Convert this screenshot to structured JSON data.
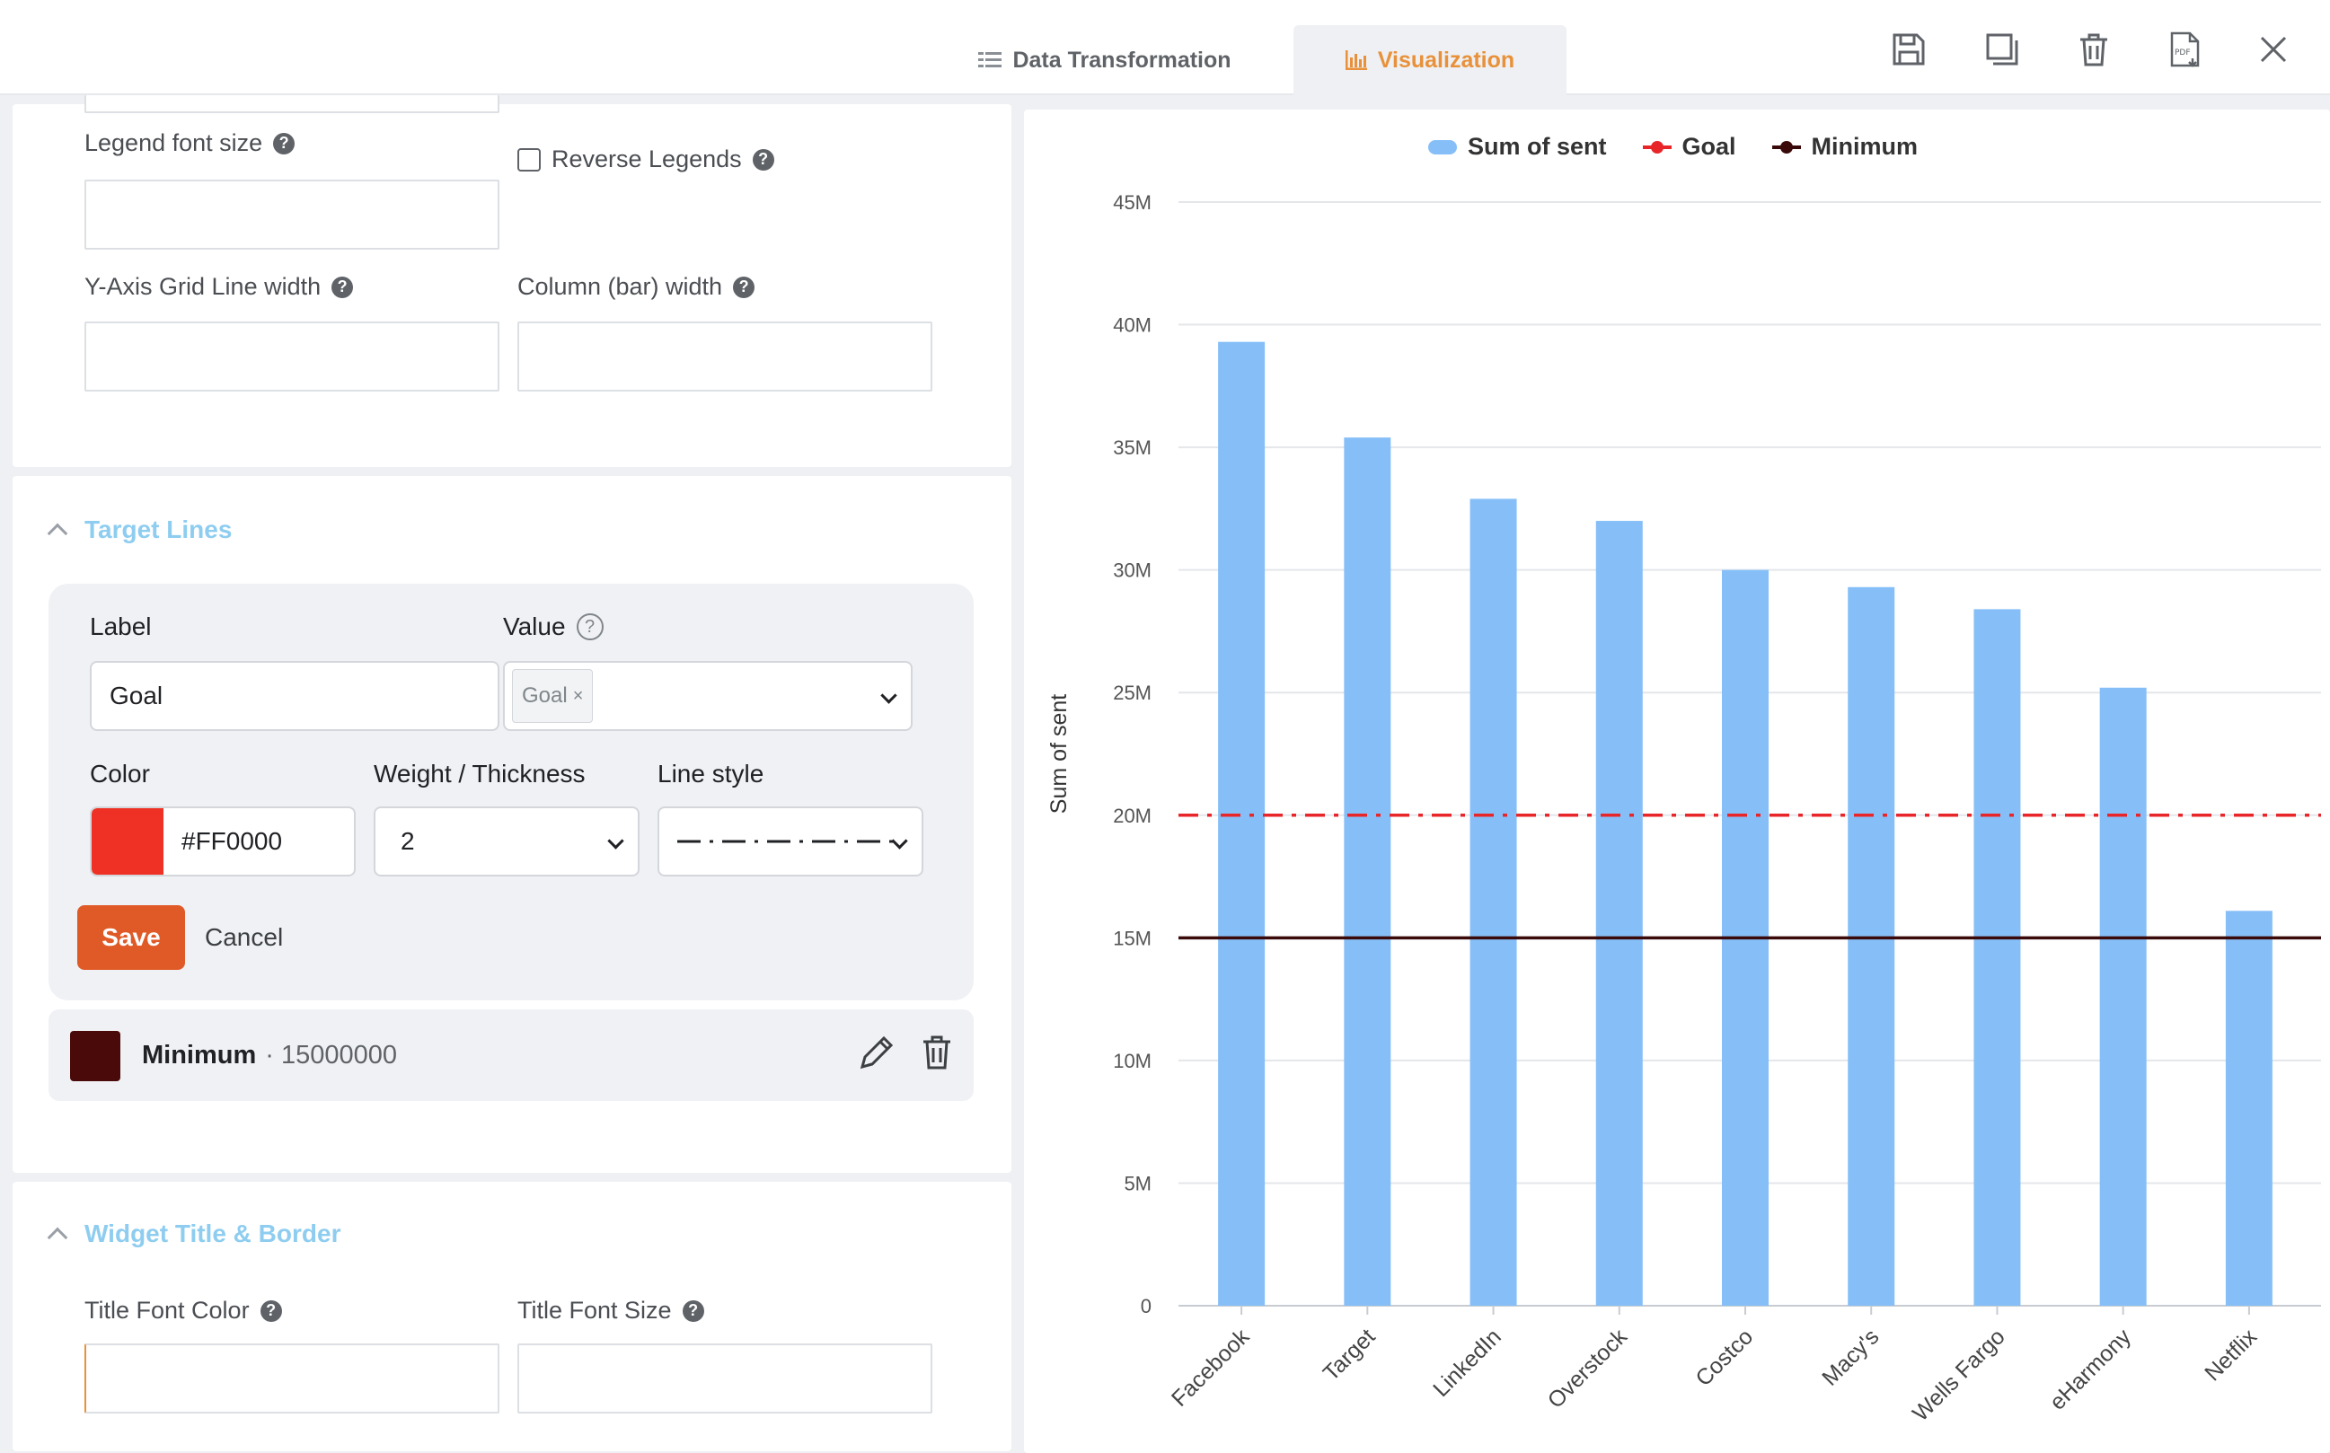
{
  "tabs": [
    {
      "label": "Data Transformation",
      "active": false
    },
    {
      "label": "Visualization",
      "active": true
    }
  ],
  "toolbar": {
    "icons": [
      "save-icon",
      "duplicate-icon",
      "trash-icon",
      "pdf-icon",
      "close-icon"
    ]
  },
  "settings": {
    "legend_font_size_label": "Legend font size",
    "reverse_legends_label": "Reverse Legends",
    "grid_width_label": "Y-Axis Grid Line width",
    "bar_width_label": "Column (bar) width"
  },
  "target_lines": {
    "section_title": "Target Lines",
    "label_label": "Label",
    "label_value": "Goal",
    "value_label": "Value",
    "value_chip": "Goal",
    "color_label": "Color",
    "color_value": "#FF0000",
    "weight_label": "Weight / Thickness",
    "weight_value": "2",
    "line_style_label": "Line style",
    "save_label": "Save",
    "cancel_label": "Cancel",
    "existing": [
      {
        "name": "Minimum",
        "value": "· 15000000",
        "color": "#4a0a0a"
      }
    ]
  },
  "widget_title": {
    "section_title": "Widget Title & Border",
    "font_color_label": "Title Font Color",
    "font_size_label": "Title Font Size"
  },
  "chart_data": {
    "type": "bar",
    "categories": [
      "Facebook",
      "Target",
      "LinkedIn",
      "Overstock",
      "Costco",
      "Macy's",
      "Wells Fargo",
      "eHarmony",
      "Netflix"
    ],
    "series": [
      {
        "name": "Sum of sent",
        "values": [
          39300000,
          35400000,
          32900000,
          32000000,
          30000000,
          29300000,
          28400000,
          25200000,
          16100000
        ],
        "color": "#86bff8"
      }
    ],
    "target_lines": [
      {
        "name": "Goal",
        "value": 20000000,
        "color": "#e8262a",
        "style": "dash-dot"
      },
      {
        "name": "Minimum",
        "value": 15000000,
        "color": "#3a0a0a",
        "style": "solid"
      }
    ],
    "ylabel": "Sum of sent",
    "ylim": [
      0,
      45000000
    ],
    "y_ticks": [
      "0",
      "5M",
      "10M",
      "15M",
      "20M",
      "25M",
      "30M",
      "35M",
      "40M",
      "45M"
    ],
    "grid": true,
    "legend_position": "top"
  }
}
